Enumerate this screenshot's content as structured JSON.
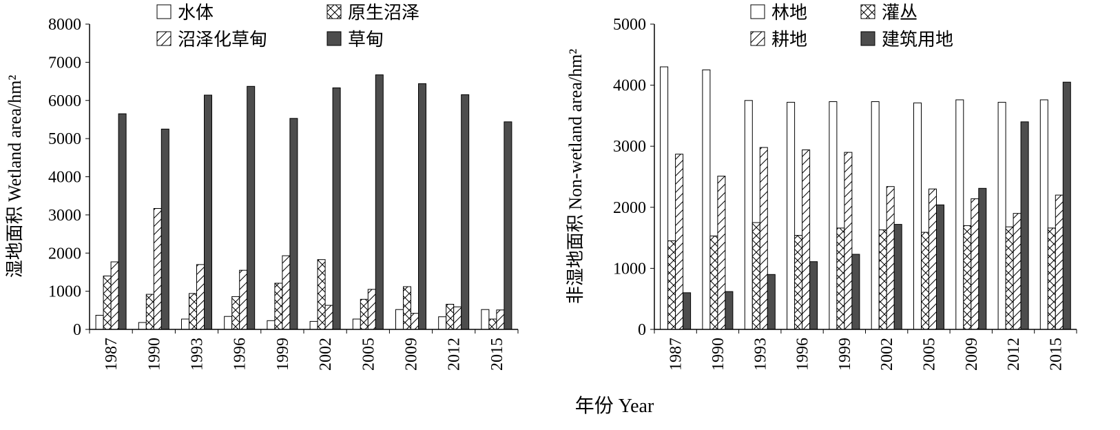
{
  "footer": {
    "year_label": "年份  Year"
  },
  "chart_data": [
    {
      "type": "bar",
      "ylabel": "湿地面积 Wetland area/hm²",
      "ylim": [
        0,
        8000
      ],
      "yticks": [
        0,
        1000,
        2000,
        3000,
        4000,
        5000,
        6000,
        7000,
        8000
      ],
      "categories": [
        "1987",
        "1990",
        "1993",
        "1996",
        "1999",
        "2002",
        "2005",
        "2009",
        "2012",
        "2015"
      ],
      "grid": false,
      "legend": "top",
      "series": [
        {
          "name": "水体",
          "pattern": "empty",
          "values": [
            370,
            180,
            270,
            340,
            230,
            210,
            270,
            520,
            330,
            520
          ]
        },
        {
          "name": "原生沼泽",
          "pattern": "cross",
          "values": [
            1400,
            920,
            940,
            860,
            1210,
            1830,
            790,
            1120,
            660,
            270
          ]
        },
        {
          "name": "沼泽化草甸",
          "pattern": "diagonal",
          "values": [
            1770,
            3170,
            1700,
            1550,
            1930,
            630,
            1050,
            420,
            590,
            510
          ]
        },
        {
          "name": "草甸",
          "pattern": "solid",
          "values": [
            5650,
            5250,
            6140,
            6370,
            5530,
            6330,
            6670,
            6440,
            6150,
            5440
          ]
        }
      ]
    },
    {
      "type": "bar",
      "ylabel": "非湿地面积 Non-wetland area/hm²",
      "ylim": [
        0,
        5000
      ],
      "yticks": [
        0,
        1000,
        2000,
        3000,
        4000,
        5000
      ],
      "categories": [
        "1987",
        "1990",
        "1993",
        "1996",
        "1999",
        "2002",
        "2005",
        "2009",
        "2012",
        "2015"
      ],
      "grid": false,
      "legend": "top",
      "series": [
        {
          "name": "林地",
          "pattern": "empty",
          "values": [
            4300,
            4250,
            3750,
            3720,
            3730,
            3730,
            3710,
            3760,
            3720,
            3760
          ]
        },
        {
          "name": "灌丛",
          "pattern": "cross",
          "values": [
            1450,
            1530,
            1750,
            1540,
            1660,
            1630,
            1590,
            1700,
            1680,
            1660
          ]
        },
        {
          "name": "耕地",
          "pattern": "diagonal",
          "values": [
            2870,
            2510,
            2980,
            2940,
            2900,
            2340,
            2300,
            2140,
            1900,
            2200
          ]
        },
        {
          "name": "建筑用地",
          "pattern": "solid",
          "values": [
            600,
            620,
            900,
            1110,
            1230,
            1720,
            2040,
            2310,
            3400,
            4050
          ]
        }
      ]
    }
  ]
}
